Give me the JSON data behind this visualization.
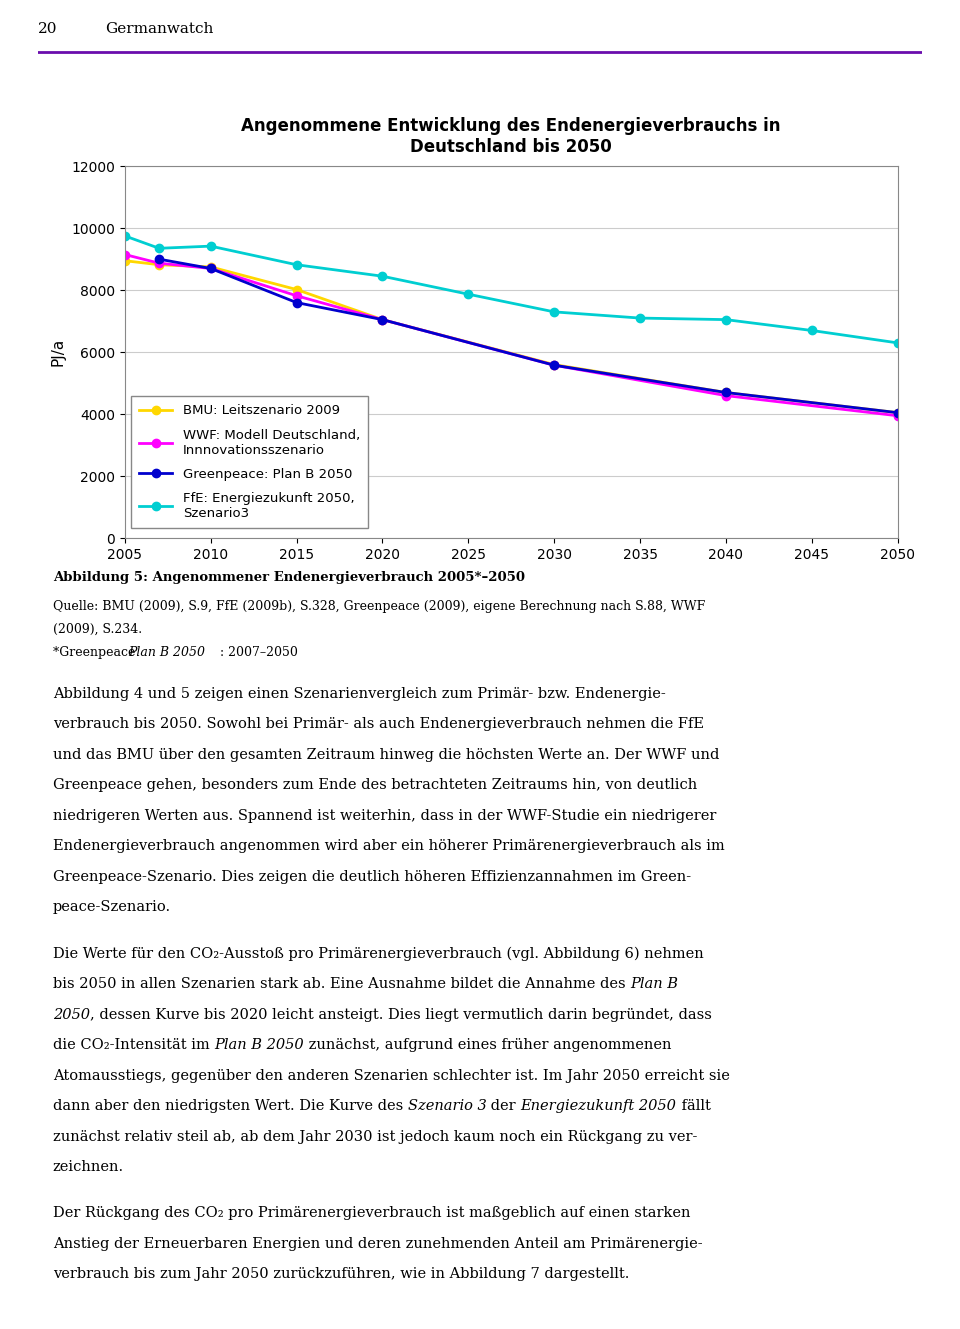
{
  "title": "Angenommene Entwicklung des Endenergieverbrauchs in\nDeutschland bis 2050",
  "ylabel": "PJ/a",
  "xlim": [
    2005,
    2050
  ],
  "ylim": [
    0,
    12000
  ],
  "yticks": [
    0,
    2000,
    4000,
    6000,
    8000,
    10000,
    12000
  ],
  "xticks": [
    2005,
    2010,
    2015,
    2020,
    2025,
    2030,
    2035,
    2040,
    2045,
    2050
  ],
  "series": {
    "BMU": {
      "label": "BMU: Leitszenario 2009",
      "color": "#FFD700",
      "marker": "o",
      "x": [
        2005,
        2007,
        2010,
        2015,
        2020,
        2030,
        2040,
        2050
      ],
      "y": [
        8950,
        8820,
        8750,
        8020,
        7050,
        5600,
        4700,
        4050
      ]
    },
    "WWF": {
      "label": "WWF: Modell Deutschland,\nInnnovationsszenario",
      "color": "#FF00FF",
      "marker": "o",
      "x": [
        2005,
        2007,
        2010,
        2015,
        2020,
        2030,
        2040,
        2050
      ],
      "y": [
        9150,
        8870,
        8700,
        7820,
        7050,
        5580,
        4600,
        3950
      ]
    },
    "Greenpeace": {
      "label": "Greenpeace: Plan B 2050",
      "color": "#0000CD",
      "marker": "o",
      "x": [
        2007,
        2010,
        2015,
        2020,
        2030,
        2040,
        2050
      ],
      "y": [
        9000,
        8700,
        7600,
        7050,
        5580,
        4700,
        4050
      ]
    },
    "FfE": {
      "label": "FfE: Energiezukunft 2050,\nSzenario3",
      "color": "#00CED1",
      "marker": "o",
      "x": [
        2005,
        2007,
        2010,
        2015,
        2020,
        2025,
        2030,
        2035,
        2040,
        2045,
        2050
      ],
      "y": [
        9750,
        9350,
        9420,
        8820,
        8450,
        7870,
        7300,
        7100,
        7050,
        6700,
        6300
      ]
    }
  },
  "header_number": "20",
  "header_text": "Germanwatch",
  "header_line_color": "#6A0DAD",
  "fig_width": 9.6,
  "fig_height": 13.29
}
